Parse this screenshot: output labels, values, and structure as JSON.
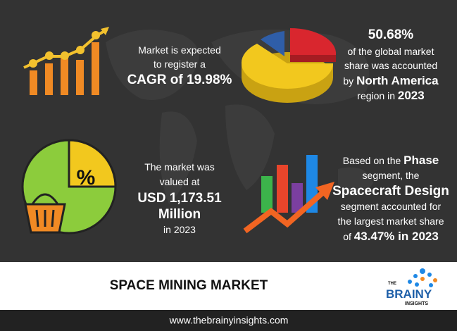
{
  "cagr_block": {
    "lines": [
      [
        {
          "text": "Market is expected"
        }
      ],
      [
        {
          "text": "to register a"
        }
      ],
      [
        {
          "text": "CAGR of 19.98%",
          "bold": true
        }
      ]
    ]
  },
  "share_block": {
    "lines": [
      [
        {
          "text": "50.68%",
          "bold": true
        }
      ],
      [
        {
          "text": "of the global market"
        }
      ],
      [
        {
          "text": "share was accounted"
        }
      ],
      [
        {
          "text": "by "
        },
        {
          "text": "North America",
          "bold": true
        }
      ],
      [
        {
          "text": "region in "
        },
        {
          "text": "2023",
          "bold": true
        }
      ]
    ]
  },
  "value_block": {
    "lines": [
      [
        {
          "text": "The market was"
        }
      ],
      [
        {
          "text": "valued at"
        }
      ],
      [
        {
          "text": "USD 1,173.51",
          "bold": true
        }
      ],
      [
        {
          "text": "Million",
          "bold": true
        }
      ],
      [
        {
          "text": "in 2023"
        }
      ]
    ]
  },
  "phase_block": {
    "lines": [
      [
        {
          "text": "Based on the "
        },
        {
          "text": "Phase",
          "bold": true
        }
      ],
      [
        {
          "text": "segment, the"
        }
      ],
      [
        {
          "text": "Spacecraft Design",
          "bold": true
        }
      ],
      [
        {
          "text": "segment accounted for"
        }
      ],
      [
        {
          "text": "the largest market share"
        }
      ],
      [
        {
          "text": "of "
        },
        {
          "text": "43.47%",
          "bold": true
        },
        {
          "text": " in 2023",
          "bold": true
        }
      ]
    ]
  },
  "icon_percent": "%",
  "title": "SPACE MINING MARKET",
  "logo": {
    "top": "THE",
    "middle": "BRAINY",
    "bottom": "INSIGHTS"
  },
  "footer": "www.thebrainyinsights.com"
}
